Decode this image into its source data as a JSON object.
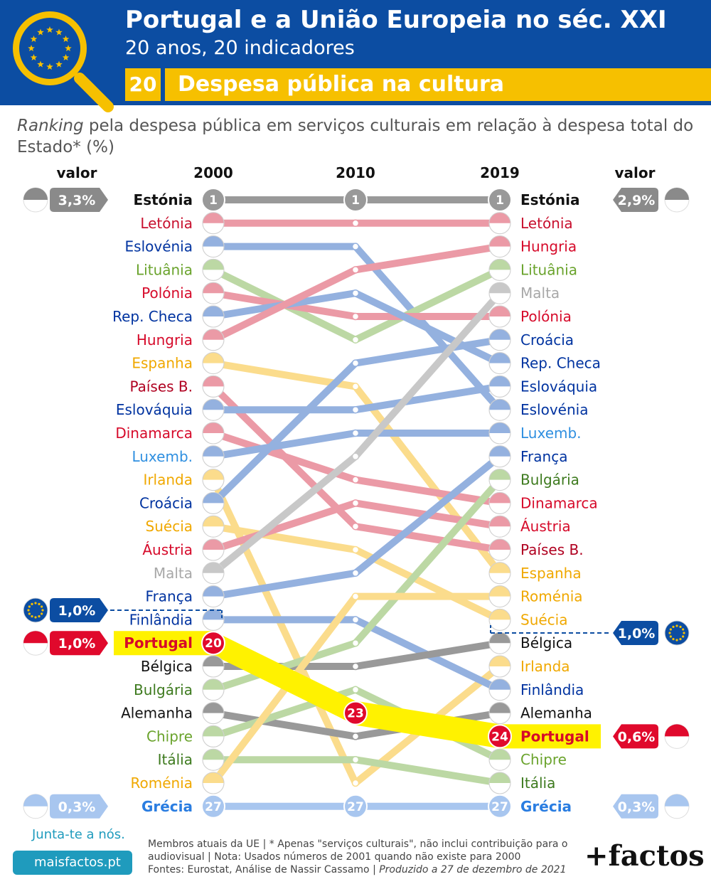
{
  "header": {
    "title": "Portugal e a União Europeia no séc. XXI",
    "subtitle": "20 anos, 20 indicadores",
    "number": "20",
    "section": "Despesa pública na cultura"
  },
  "description": {
    "ranking_word": "Ranking",
    "rest": " pela despesa pública em serviços culturais em relação à despesa total do Estado* (%)"
  },
  "chart_data": {
    "type": "slope",
    "years": [
      "2000",
      "2010",
      "2019"
    ],
    "valor_label": "valor",
    "colors": {
      "Estónia": "#999999",
      "Letónia": "#eb9aa6",
      "Eslovénia": "#94b1df",
      "Lituânia": "#bcd8a4",
      "Polónia": "#eb9aa6",
      "Rep. Checa": "#94b1df",
      "Hungria": "#eb9aa6",
      "Espanha": "#fbdc8c",
      "Países B.": "#eb9aa6",
      "Eslováquia": "#94b1df",
      "Dinamarca": "#eb9aa6",
      "Luxemb.": "#94b1df",
      "Irlanda": "#fbdc8c",
      "Croácia": "#94b1df",
      "Suécia": "#fbdc8c",
      "Áustria": "#eb9aa6",
      "Malta": "#c8c8c8",
      "França": "#94b1df",
      "Finlândia": "#94b1df",
      "Portugal": "#e0092c",
      "Bélgica": "#999999",
      "Bulgária": "#bcd8a4",
      "Alemanha": "#999999",
      "Chipre": "#bcd8a4",
      "Itália": "#bcd8a4",
      "Roménia": "#fbdc8c",
      "Grécia": "#a8c6ef"
    },
    "label_colors": {
      "Estónia": "#111111",
      "Letónia": "#c8102e",
      "Eslovénia": "#0033a0",
      "Lituânia": "#6aa32c",
      "Polónia": "#d60a2a",
      "Rep. Checa": "#0033a0",
      "Hungria": "#d60a2a",
      "Espanha": "#f0a800",
      "Países B.": "#b00020",
      "Eslováquia": "#0033a0",
      "Dinamarca": "#d60a2a",
      "Luxemb.": "#2f8fe0",
      "Irlanda": "#f0a800",
      "Croácia": "#0033a0",
      "Suécia": "#f0a800",
      "Áustria": "#d60a2a",
      "Malta": "#a8a8a8",
      "França": "#0033a0",
      "Finlândia": "#0033a0",
      "Portugal": "#d60a2a",
      "Bélgica": "#111111",
      "Bulgária": "#3d7a1e",
      "Alemanha": "#111111",
      "Chipre": "#6aa32c",
      "Itália": "#3d7a1e",
      "Roménia": "#f0a800",
      "Grécia": "#2a7de1",
      "Croácia2019": "#0033a0"
    },
    "ranking_2000": [
      "Estónia",
      "Letónia",
      "Eslovénia",
      "Lituânia",
      "Polónia",
      "Rep. Checa",
      "Hungria",
      "Espanha",
      "Países B.",
      "Eslováquia",
      "Dinamarca",
      "Luxemb.",
      "Irlanda",
      "Croácia",
      "Suécia",
      "Áustria",
      "Malta",
      "França",
      "Finlândia",
      "Portugal",
      "Bélgica",
      "Bulgária",
      "Alemanha",
      "Chipre",
      "Itália",
      "Roménia",
      "Grécia"
    ],
    "ranking_2010": [
      "Estónia",
      "Letónia",
      "Eslovénia",
      "Hungria",
      "Rep. Checa",
      "Polónia",
      "Lituânia",
      "Croácia",
      "Espanha",
      "Eslováquia",
      "Luxemb.",
      "Malta",
      "Dinamarca",
      "Áustria",
      "Países B.",
      "Suécia",
      "França",
      "Roménia",
      "Finlândia",
      "Bulgária",
      "Bélgica",
      "Chipre",
      "Portugal",
      "Alemanha",
      "Itália",
      "Irlanda",
      "Grécia"
    ],
    "ranking_2019": [
      "Estónia",
      "Letónia",
      "Hungria",
      "Lituânia",
      "Malta",
      "Polónia",
      "Croácia",
      "Rep. Checa",
      "Eslováquia",
      "Eslovénia",
      "Luxemb.",
      "França",
      "Bulgária",
      "Dinamarca",
      "Áustria",
      "Países B.",
      "Espanha",
      "Roménia",
      "Suécia",
      "Bélgica",
      "Irlanda",
      "Finlândia",
      "Alemanha",
      "Portugal",
      "Chipre",
      "Itália",
      "Grécia"
    ],
    "rank_circles": {
      "Estónia": [
        "1",
        "1",
        "1"
      ],
      "Portugal": [
        "20",
        "23",
        "24"
      ],
      "Grécia": [
        "27",
        "27",
        "27"
      ]
    },
    "values_left": [
      {
        "country": "Estónia",
        "value": "3,3%"
      },
      {
        "country": "UE",
        "value": "1,0%"
      },
      {
        "country": "Portugal",
        "value": "1,0%"
      },
      {
        "country": "Grécia",
        "value": "0,3%"
      }
    ],
    "values_right": [
      {
        "country": "Estónia",
        "value": "2,9%"
      },
      {
        "country": "UE",
        "value": "1,0%"
      },
      {
        "country": "Portugal",
        "value": "0,6%"
      },
      {
        "country": "Grécia",
        "value": "0,3%"
      }
    ]
  },
  "footer": {
    "line1": "Membros atuais da UE | * Apenas \"serviços culturais\", não inclui contribuição para o",
    "line2": "audiovisual | Nota: Usados números de 2001 quando não existe para 2000",
    "line3_a": "Fontes: Eurostat, Análise de Nassir Cassamo | ",
    "line3_b": "Produzido a 27 de dezembro de 2021",
    "junta": "Junta-te a nós.",
    "site": "maisfactos.pt",
    "brand": "+factos"
  }
}
